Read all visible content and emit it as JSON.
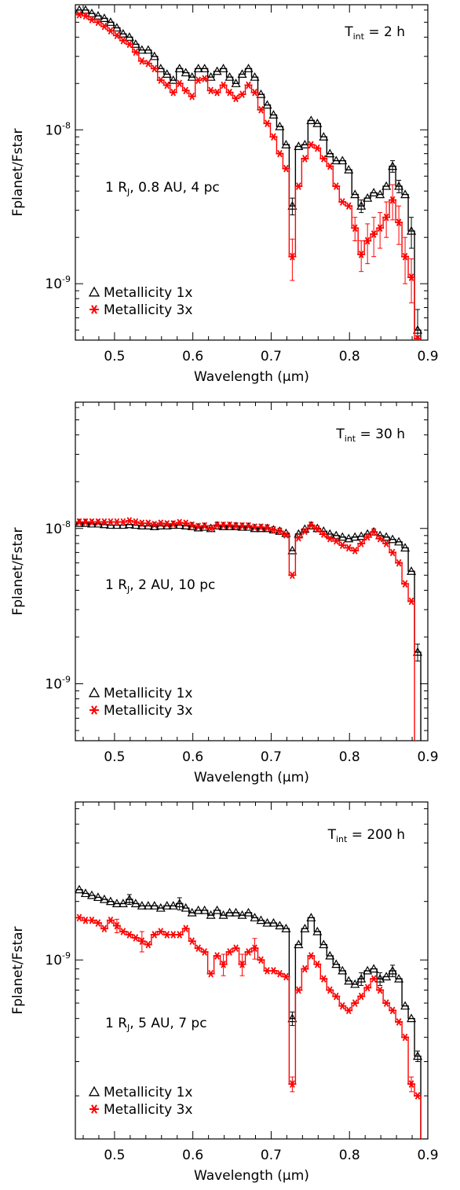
{
  "chart_data": [
    {
      "type": "line",
      "panel": "top",
      "annotation_time": {
        "prefix": "T",
        "sub": "int",
        "suffix": " = 2 h"
      },
      "annotation_params": {
        "prefix": "1 R",
        "sub": "J",
        "suffix": ", 0.8 AU, 4 pc"
      },
      "xlabel": "Wavelength (μm)",
      "ylabel": "Fplanet/Fstar",
      "xlim": [
        0.45,
        0.9
      ],
      "ylim": [
        4.3e-10,
        6.5e-08
      ],
      "yscale": "log",
      "x_ticks": [
        "0.5",
        "0.6",
        "0.7",
        "0.8",
        "0.9"
      ],
      "y_ticks": [
        {
          "base": "10",
          "exp": "-9"
        },
        {
          "base": "10",
          "exp": "-8"
        }
      ],
      "legend": {
        "position": "bottom-left",
        "entries": [
          "Metallicity 1x",
          "Metallicity 3x"
        ]
      },
      "x": [
        0.455,
        0.463,
        0.471,
        0.479,
        0.487,
        0.495,
        0.503,
        0.511,
        0.519,
        0.527,
        0.535,
        0.543,
        0.551,
        0.559,
        0.567,
        0.575,
        0.583,
        0.591,
        0.599,
        0.607,
        0.615,
        0.623,
        0.631,
        0.639,
        0.647,
        0.655,
        0.663,
        0.671,
        0.679,
        0.687,
        0.695,
        0.703,
        0.711,
        0.719,
        0.727,
        0.735,
        0.743,
        0.751,
        0.759,
        0.767,
        0.775,
        0.783,
        0.791,
        0.799,
        0.807,
        0.815,
        0.823,
        0.831,
        0.839,
        0.847,
        0.855,
        0.863,
        0.871,
        0.879,
        0.887
      ],
      "series": [
        {
          "name": "Metallicity 1x",
          "color": "#000000",
          "marker": "triangle",
          "values": [
            6e-08,
            6e-08,
            5.7e-08,
            5.5e-08,
            5.3e-08,
            5e-08,
            4.6e-08,
            4.2e-08,
            4e-08,
            3.6e-08,
            3.3e-08,
            3.3e-08,
            3e-08,
            2.5e-08,
            2.3e-08,
            2.1e-08,
            2.5e-08,
            2.35e-08,
            2.2e-08,
            2.5e-08,
            2.5e-08,
            2.2e-08,
            2.4e-08,
            2.5e-08,
            2.2e-08,
            2e-08,
            2.3e-08,
            2.5e-08,
            2.2e-08,
            1.7e-08,
            1.45e-08,
            1.25e-08,
            1.05e-08,
            8e-09,
            3.2e-09,
            7.8e-09,
            8e-09,
            1.15e-08,
            1.1e-08,
            9e-09,
            7e-09,
            6.3e-09,
            6.3e-09,
            5.5e-09,
            3.8e-09,
            3.2e-09,
            3.6e-09,
            3.9e-09,
            3.8e-09,
            4.3e-09,
            5.8e-09,
            4.3e-09,
            3.8e-09,
            2.2e-09,
            5e-10
          ],
          "errors": [
            0,
            0,
            0,
            0,
            0,
            0,
            0,
            0,
            0,
            0,
            0,
            0,
            0,
            0,
            0,
            0,
            0,
            0,
            0,
            0,
            0,
            0,
            0,
            0,
            0,
            0,
            0,
            0,
            0,
            0,
            0,
            0,
            0,
            0,
            4e-10,
            0,
            0,
            0,
            0,
            0,
            0,
            0,
            0,
            0,
            0,
            3e-10,
            0,
            0,
            0,
            0,
            5e-10,
            4e-10,
            0,
            5e-10,
            1.8e-10
          ]
        },
        {
          "name": "Metallicity 3x",
          "color": "#ff0000",
          "marker": "asterisk",
          "values": [
            5.6e-08,
            5.5e-08,
            5.2e-08,
            5e-08,
            4.7e-08,
            4.4e-08,
            4.1e-08,
            3.8e-08,
            3.6e-08,
            3.2e-08,
            2.8e-08,
            2.7e-08,
            2.5e-08,
            2.1e-08,
            1.95e-08,
            1.75e-08,
            2e-08,
            1.8e-08,
            1.65e-08,
            2.1e-08,
            2.15e-08,
            1.8e-08,
            1.75e-08,
            1.95e-08,
            1.75e-08,
            1.6e-08,
            1.7e-08,
            1.95e-08,
            1.75e-08,
            1.35e-08,
            1.1e-08,
            9e-09,
            7e-09,
            5.6e-09,
            1.5e-09,
            4.3e-09,
            6.5e-09,
            8e-09,
            7.6e-09,
            6.5e-09,
            5.8e-09,
            4.3e-09,
            3.4e-09,
            3.2e-09,
            2.3e-09,
            1.55e-09,
            1.9e-09,
            2.1e-09,
            2.3e-09,
            2.7e-09,
            3.5e-09,
            2.5e-09,
            1.5e-09,
            1.1e-09,
            4.4e-10
          ],
          "errors": [
            0,
            0,
            0,
            0,
            0,
            0,
            0,
            0,
            0,
            0,
            0,
            0,
            0,
            0,
            0,
            0,
            0,
            0,
            0,
            0,
            0,
            0,
            0,
            0,
            0,
            0,
            0,
            0,
            0,
            0,
            0,
            0,
            0,
            0,
            4.5e-10,
            0,
            0,
            0,
            0,
            0,
            0,
            0,
            0,
            0,
            4e-10,
            3.5e-10,
            5.5e-10,
            6e-10,
            6e-10,
            7e-10,
            9e-10,
            7e-10,
            5e-10,
            3.5e-10,
            0
          ]
        }
      ]
    },
    {
      "type": "line",
      "panel": "middle",
      "annotation_time": {
        "prefix": "T",
        "sub": "int",
        "suffix": " = 30 h"
      },
      "annotation_params": {
        "prefix": "1 R",
        "sub": "J",
        "suffix": ", 2 AU, 10 pc"
      },
      "xlabel": "Wavelength (μm)",
      "ylabel": "Fplanet/Fstar",
      "xlim": [
        0.45,
        0.9
      ],
      "ylim": [
        4.3e-10,
        6.5e-08
      ],
      "yscale": "log",
      "x_ticks": [
        "0.5",
        "0.6",
        "0.7",
        "0.8",
        "0.9"
      ],
      "y_ticks": [
        {
          "base": "10",
          "exp": "-9"
        },
        {
          "base": "10",
          "exp": "-8"
        }
      ],
      "legend": {
        "position": "bottom-left",
        "entries": [
          "Metallicity 1x",
          "Metallicity 3x"
        ]
      },
      "x": [
        0.455,
        0.463,
        0.471,
        0.479,
        0.487,
        0.495,
        0.503,
        0.511,
        0.519,
        0.527,
        0.535,
        0.543,
        0.551,
        0.559,
        0.567,
        0.575,
        0.583,
        0.591,
        0.599,
        0.607,
        0.615,
        0.623,
        0.631,
        0.639,
        0.647,
        0.655,
        0.663,
        0.671,
        0.679,
        0.687,
        0.695,
        0.703,
        0.711,
        0.719,
        0.727,
        0.735,
        0.743,
        0.751,
        0.759,
        0.767,
        0.775,
        0.783,
        0.791,
        0.799,
        0.807,
        0.815,
        0.823,
        0.831,
        0.839,
        0.847,
        0.855,
        0.863,
        0.871,
        0.879,
        0.887
      ],
      "series": [
        {
          "name": "Metallicity 1x",
          "color": "#000000",
          "marker": "triangle",
          "values": [
            1.08e-08,
            1.08e-08,
            1.07e-08,
            1.07e-08,
            1.06e-08,
            1.05e-08,
            1.05e-08,
            1.05e-08,
            1.06e-08,
            1.05e-08,
            1.04e-08,
            1.04e-08,
            1.03e-08,
            1.04e-08,
            1.04e-08,
            1.05e-08,
            1.05e-08,
            1.04e-08,
            1.03e-08,
            1.01e-08,
            1.02e-08,
            1e-08,
            1.04e-08,
            1.03e-08,
            1.03e-08,
            1.03e-08,
            1.02e-08,
            1.02e-08,
            1e-08,
            1e-08,
            1e-08,
            9.8e-09,
            9.6e-09,
            9.3e-09,
            7.2e-09,
            9.2e-09,
            9.9e-09,
            1.04e-08,
            1e-08,
            9.6e-09,
            9.2e-09,
            9e-09,
            8.8e-09,
            8.6e-09,
            8.8e-09,
            8.9e-09,
            9.2e-09,
            9.5e-09,
            9e-09,
            8.8e-09,
            8.5e-09,
            8.2e-09,
            7.5e-09,
            5.3e-09,
            1.6e-09
          ],
          "errors": [
            0,
            0,
            0,
            0,
            0,
            0,
            0,
            0,
            0,
            0,
            0,
            0,
            0,
            0,
            0,
            0,
            0,
            0,
            0,
            0,
            0,
            0,
            0,
            0,
            0,
            0,
            0,
            0,
            0,
            0,
            0,
            0,
            0,
            0,
            0,
            0,
            0,
            0,
            0,
            0,
            0,
            0,
            0,
            0,
            0,
            0,
            0,
            0,
            0,
            0,
            0,
            0,
            0,
            0,
            2e-10
          ]
        },
        {
          "name": "Metallicity 3x",
          "color": "#ff0000",
          "marker": "asterisk",
          "values": [
            1.1e-08,
            1.1e-08,
            1.1e-08,
            1.1e-08,
            1.1e-08,
            1.1e-08,
            1.1e-08,
            1.1e-08,
            1.12e-08,
            1.1e-08,
            1.08e-08,
            1.08e-08,
            1.06e-08,
            1.08e-08,
            1.07e-08,
            1.07e-08,
            1.09e-08,
            1.08e-08,
            1.05e-08,
            1.03e-08,
            1.04e-08,
            1e-08,
            1.05e-08,
            1.05e-08,
            1.05e-08,
            1.04e-08,
            1.04e-08,
            1.04e-08,
            1.02e-08,
            1.02e-08,
            1.01e-08,
            9.8e-09,
            9.6e-09,
            9.1e-09,
            5e-09,
            8.7e-09,
            9.6e-09,
            1.05e-08,
            9.9e-09,
            9.2e-09,
            8.6e-09,
            8.3e-09,
            7.8e-09,
            7.5e-09,
            7.2e-09,
            8e-09,
            8.8e-09,
            9.5e-09,
            8.6e-09,
            8e-09,
            7e-09,
            6e-09,
            4.4e-09,
            3.4e-09,
            3.5e-10
          ],
          "errors": [
            0,
            0,
            0,
            0,
            0,
            0,
            0,
            0,
            0,
            0,
            0,
            0,
            0,
            0,
            0,
            0,
            0,
            0,
            0,
            0,
            0,
            0,
            0,
            0,
            0,
            0,
            0,
            0,
            0,
            0,
            0,
            0,
            0,
            0,
            0,
            0,
            0,
            0,
            0,
            0,
            0,
            0,
            0,
            0,
            0,
            0,
            0,
            0,
            0,
            0,
            0,
            0,
            0,
            0,
            0
          ]
        }
      ]
    },
    {
      "type": "line",
      "panel": "bottom",
      "annotation_time": {
        "prefix": "T",
        "sub": "int",
        "suffix": " = 200 h"
      },
      "annotation_params": {
        "prefix": "1 R",
        "sub": "J",
        "suffix": ", 5 AU, 7 pc"
      },
      "xlabel": "Wavelength (μm)",
      "ylabel": "Fplanet/Fstar",
      "xlim": [
        0.45,
        0.9
      ],
      "ylim": [
        1.2e-10,
        6.5e-09
      ],
      "yscale": "log",
      "x_ticks": [
        "0.5",
        "0.6",
        "0.7",
        "0.8",
        "0.9"
      ],
      "y_ticks": [
        {
          "base": "10",
          "exp": "-9"
        }
      ],
      "legend": {
        "position": "bottom-left",
        "entries": [
          "Metallicity 1x",
          "Metallicity 3x"
        ]
      },
      "x": [
        0.455,
        0.463,
        0.471,
        0.479,
        0.487,
        0.495,
        0.503,
        0.511,
        0.519,
        0.527,
        0.535,
        0.543,
        0.551,
        0.559,
        0.567,
        0.575,
        0.583,
        0.591,
        0.599,
        0.607,
        0.615,
        0.623,
        0.631,
        0.639,
        0.647,
        0.655,
        0.663,
        0.671,
        0.679,
        0.687,
        0.695,
        0.703,
        0.711,
        0.719,
        0.727,
        0.735,
        0.743,
        0.751,
        0.759,
        0.767,
        0.775,
        0.783,
        0.791,
        0.799,
        0.807,
        0.815,
        0.823,
        0.831,
        0.839,
        0.847,
        0.855,
        0.863,
        0.871,
        0.879,
        0.887
      ],
      "series": [
        {
          "name": "Metallicity 1x",
          "color": "#000000",
          "marker": "triangle",
          "values": [
            2.3e-09,
            2.2e-09,
            2.15e-09,
            2.1e-09,
            2.05e-09,
            2e-09,
            1.95e-09,
            1.95e-09,
            2.05e-09,
            1.95e-09,
            1.9e-09,
            1.9e-09,
            1.9e-09,
            1.85e-09,
            1.9e-09,
            1.9e-09,
            1.95e-09,
            1.85e-09,
            1.75e-09,
            1.8e-09,
            1.8e-09,
            1.7e-09,
            1.8e-09,
            1.7e-09,
            1.75e-09,
            1.75e-09,
            1.7e-09,
            1.75e-09,
            1.65e-09,
            1.6e-09,
            1.55e-09,
            1.55e-09,
            1.5e-09,
            1.45e-09,
            5e-10,
            1.2e-09,
            1.45e-09,
            1.65e-09,
            1.4e-09,
            1.2e-09,
            1.05e-09,
            9.5e-10,
            8.8e-10,
            7.8e-10,
            7.5e-10,
            8e-10,
            8.8e-10,
            9e-10,
            8e-10,
            8.2e-10,
            8.8e-10,
            8e-10,
            5.8e-10,
            5e-10,
            3.2e-10
          ],
          "errors": [
            0,
            0,
            0,
            0,
            0,
            0,
            0,
            0,
            1.2e-10,
            0,
            0,
            0,
            0,
            0,
            0,
            0,
            1.4e-10,
            0,
            0,
            0,
            0,
            0,
            0,
            0,
            0,
            0,
            0,
            0,
            0,
            0,
            0,
            0,
            0,
            0,
            4e-11,
            0,
            0,
            0,
            0,
            0,
            0,
            0,
            0,
            0,
            0,
            6e-11,
            0,
            0,
            6e-11,
            0,
            6e-11,
            0,
            0,
            0,
            2e-11
          ]
        },
        {
          "name": "Metallicity 3x",
          "color": "#ff0000",
          "marker": "asterisk",
          "values": [
            1.65e-09,
            1.6e-09,
            1.6e-09,
            1.55e-09,
            1.45e-09,
            1.6e-09,
            1.5e-09,
            1.4e-09,
            1.35e-09,
            1.3e-09,
            1.25e-09,
            1.2e-09,
            1.35e-09,
            1.4e-09,
            1.35e-09,
            1.35e-09,
            1.35e-09,
            1.45e-09,
            1.25e-09,
            1.15e-09,
            1.1e-09,
            8.5e-10,
            1.05e-09,
            9.5e-10,
            1.1e-09,
            1.15e-09,
            9.5e-10,
            1.1e-09,
            1.15e-09,
            1e-09,
            8.8e-10,
            8.8e-10,
            8.5e-10,
            8.2e-10,
            2.3e-10,
            7e-10,
            9e-10,
            1.05e-09,
            9.5e-10,
            8e-10,
            7e-10,
            6.5e-10,
            5.8e-10,
            5.5e-10,
            6e-10,
            6.5e-10,
            7.2e-10,
            8e-10,
            7e-10,
            6e-10,
            5.5e-10,
            4.8e-10,
            4e-10,
            2.3e-10,
            2e-10
          ],
          "errors": [
            0,
            0,
            0,
            0,
            0,
            0,
            1.2e-10,
            0,
            0,
            0,
            1.5e-10,
            0,
            0,
            0,
            0,
            0,
            0,
            0,
            0,
            0,
            0,
            0,
            0,
            1.2e-10,
            0,
            0,
            1.2e-10,
            0,
            1.4e-10,
            0,
            0,
            0,
            0,
            0,
            2e-11,
            0,
            0,
            0,
            0,
            0,
            0,
            0,
            0,
            0,
            0,
            0,
            0,
            0,
            0,
            0,
            0,
            0,
            0,
            2e-11,
            0
          ]
        }
      ]
    }
  ]
}
